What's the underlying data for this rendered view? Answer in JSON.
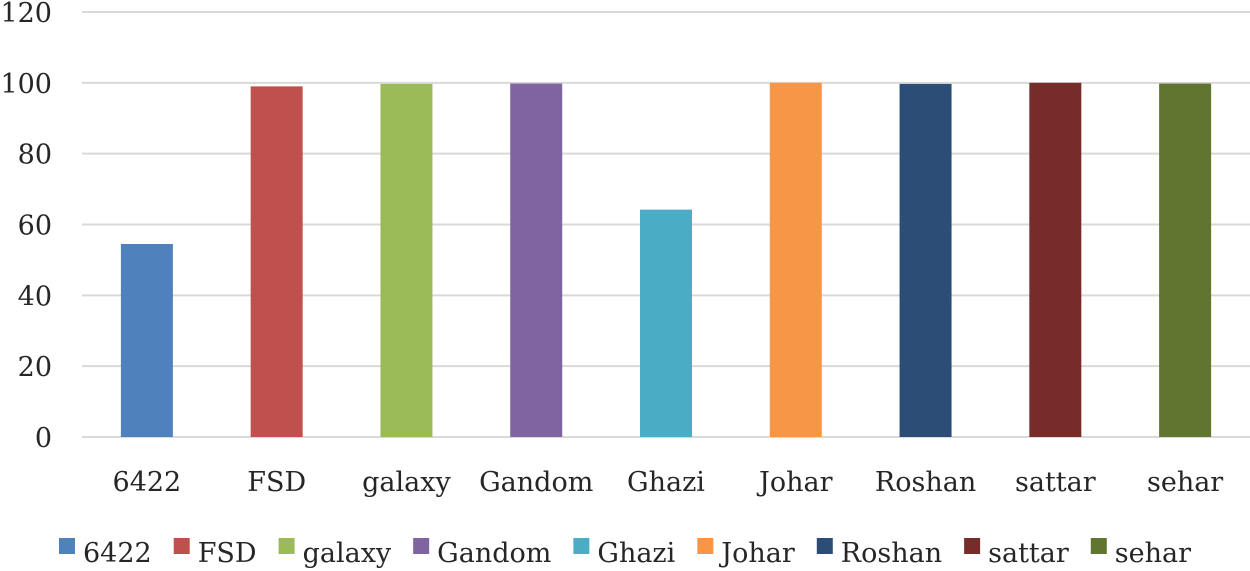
{
  "chart_data": {
    "type": "bar",
    "title": "",
    "xlabel": "",
    "ylabel": "",
    "categories": [
      "6422",
      "FSD",
      "galaxy",
      "Gandom",
      "Ghazi",
      "Johar",
      "Roshan",
      "sattar",
      "sehar"
    ],
    "values": [
      54.5,
      99,
      99.7,
      99.8,
      64.2,
      100,
      99.7,
      100,
      99.8
    ],
    "colors": [
      "#4f81bd",
      "#c0504d",
      "#9bbb59",
      "#8064a2",
      "#4bacc6",
      "#f79646",
      "#2c4d75",
      "#772c2a",
      "#5f7530"
    ],
    "ylim": [
      0,
      120
    ],
    "yticks": [
      "0",
      "20",
      "40",
      "60",
      "80",
      "100",
      "120"
    ],
    "grid": true,
    "legend_position": "bottom"
  }
}
